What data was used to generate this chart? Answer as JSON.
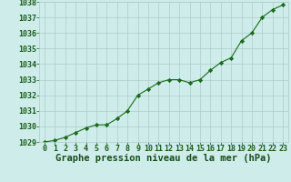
{
  "x": [
    0,
    1,
    2,
    3,
    4,
    5,
    6,
    7,
    8,
    9,
    10,
    11,
    12,
    13,
    14,
    15,
    16,
    17,
    18,
    19,
    20,
    21,
    22,
    23
  ],
  "y": [
    1029.0,
    1029.1,
    1029.3,
    1029.6,
    1029.9,
    1030.1,
    1030.1,
    1030.5,
    1031.0,
    1032.0,
    1032.4,
    1032.8,
    1033.0,
    1033.0,
    1032.8,
    1033.0,
    1033.6,
    1034.1,
    1034.4,
    1035.5,
    1036.0,
    1037.0,
    1037.5,
    1037.8
  ],
  "line_color": "#1a6b1a",
  "marker": "D",
  "marker_size": 2.2,
  "bg_color": "#cdecea",
  "grid_color": "#b0ccc8",
  "xlabel": "Graphe pression niveau de la mer (hPa)",
  "xlabel_color": "#1a4d1a",
  "tick_color": "#1a5c1a",
  "ylim": [
    1029,
    1038
  ],
  "xlim": [
    -0.5,
    23.5
  ],
  "yticks": [
    1029,
    1030,
    1031,
    1032,
    1033,
    1034,
    1035,
    1036,
    1037,
    1038
  ],
  "xticks": [
    0,
    1,
    2,
    3,
    4,
    5,
    6,
    7,
    8,
    9,
    10,
    11,
    12,
    13,
    14,
    15,
    16,
    17,
    18,
    19,
    20,
    21,
    22,
    23
  ],
  "xlabel_fontsize": 7.5,
  "tick_fontsize": 6.0
}
